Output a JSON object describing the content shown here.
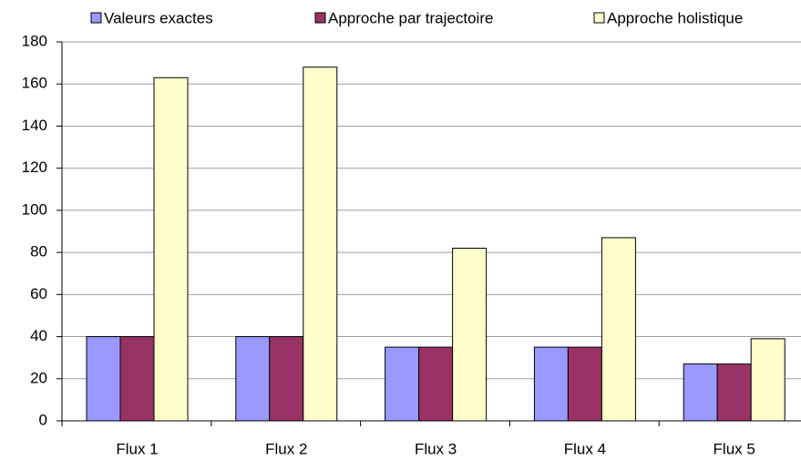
{
  "chart_data": {
    "type": "bar",
    "categories": [
      "Flux 1",
      "Flux 2",
      "Flux 3",
      "Flux 4",
      "Flux 5"
    ],
    "series": [
      {
        "name": "Valeurs exactes",
        "color": "#9999ff",
        "values": [
          40,
          40,
          35,
          35,
          27
        ]
      },
      {
        "name": "Approche par trajectoire",
        "color": "#993366",
        "values": [
          40,
          40,
          35,
          35,
          27
        ]
      },
      {
        "name": "Approche holistique",
        "color": "#ffffcc",
        "values": [
          163,
          168,
          82,
          87,
          39
        ]
      }
    ],
    "ylim": [
      0,
      180
    ],
    "yticks": [
      0,
      20,
      40,
      60,
      80,
      100,
      120,
      140,
      160,
      180
    ],
    "grid": true,
    "legend": "top"
  }
}
